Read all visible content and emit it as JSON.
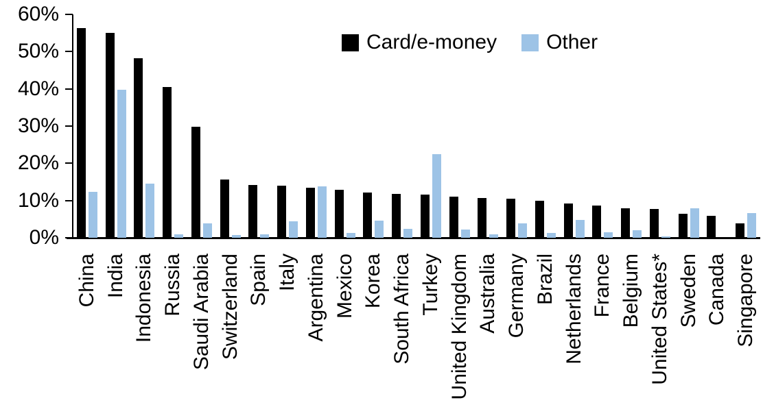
{
  "chart_data": {
    "type": "bar",
    "title": "",
    "xlabel": "",
    "ylabel": "",
    "ylim": [
      0,
      60
    ],
    "grid": "off",
    "legend_position": "top-center",
    "yticks": [
      {
        "value": 0,
        "label": "0%"
      },
      {
        "value": 10,
        "label": "10%"
      },
      {
        "value": 20,
        "label": "20%"
      },
      {
        "value": 30,
        "label": "30%"
      },
      {
        "value": 40,
        "label": "40%"
      },
      {
        "value": 50,
        "label": "50%"
      },
      {
        "value": 60,
        "label": "60%"
      }
    ],
    "categories": [
      "China",
      "India",
      "Indonesia",
      "Russia",
      "Saudi Arabia",
      "Switzerland",
      "Spain",
      "Italy",
      "Argentina",
      "Mexico",
      "Korea",
      "South Africa",
      "Turkey",
      "United Kingdom",
      "Australia",
      "Germany",
      "Brazil",
      "Netherlands",
      "France",
      "Belgium",
      "United States*",
      "Sweden",
      "Canada",
      "Singapore"
    ],
    "series": [
      {
        "name": "Card/e-money",
        "color": "#000000",
        "values": [
          56.3,
          55.0,
          48.3,
          40.5,
          29.8,
          15.6,
          14.1,
          14.0,
          13.4,
          12.9,
          12.2,
          11.7,
          11.6,
          11.0,
          10.7,
          10.5,
          10.0,
          9.2,
          8.6,
          8.0,
          7.8,
          6.5,
          5.9,
          3.9
        ]
      },
      {
        "name": "Other",
        "color": "#9DC3E6",
        "values": [
          12.3,
          39.7,
          14.5,
          1.0,
          3.9,
          0.7,
          0.9,
          4.5,
          13.8,
          1.3,
          4.6,
          2.4,
          22.4,
          2.3,
          1.0,
          3.9,
          1.2,
          4.8,
          1.5,
          2.0,
          0.3,
          7.9,
          0.0,
          6.6
        ]
      }
    ]
  }
}
